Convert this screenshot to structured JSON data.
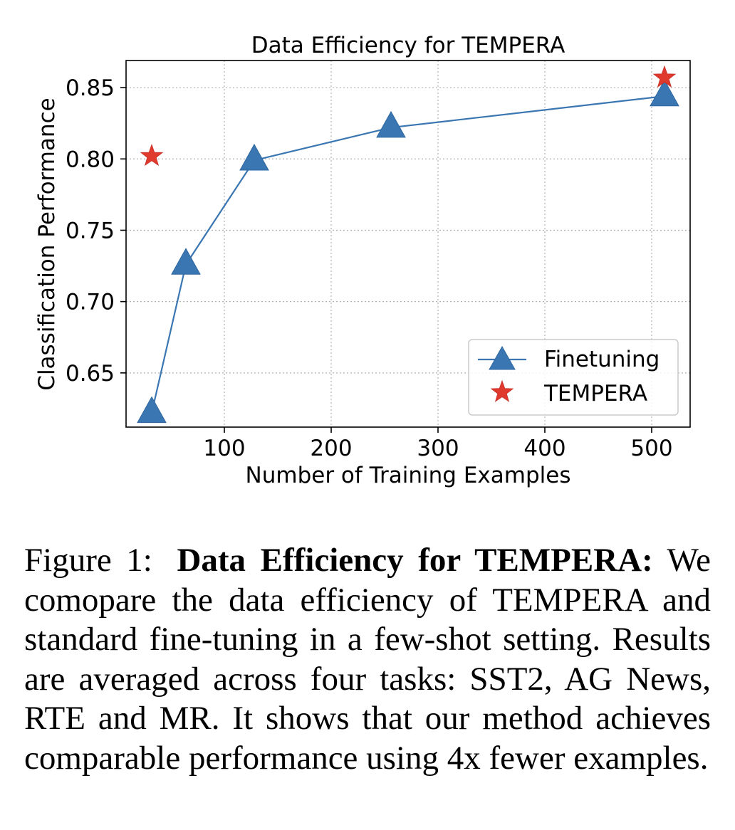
{
  "chart_data": {
    "type": "line",
    "title": "Data Efficiency for TEMPERA",
    "xlabel": "Number of Training Examples",
    "ylabel": "Classification Performance",
    "xlim": [
      8,
      536
    ],
    "ylim": [
      0.612,
      0.869
    ],
    "x_ticks": [
      100,
      200,
      300,
      400,
      500
    ],
    "y_ticks": [
      0.65,
      0.7,
      0.75,
      0.8,
      0.85
    ],
    "y_tick_labels": [
      "0.65",
      "0.70",
      "0.75",
      "0.80",
      "0.85"
    ],
    "x_tick_labels": [
      "100",
      "200",
      "300",
      "400",
      "500"
    ],
    "grid": true,
    "legend_position": "lower-right",
    "series": [
      {
        "name": "Finetuning",
        "marker": "triangle",
        "connected": true,
        "color": "#3a77b2",
        "x": [
          32,
          64,
          128,
          256,
          512
        ],
        "y": [
          0.622,
          0.726,
          0.799,
          0.822,
          0.844
        ]
      },
      {
        "name": "TEMPERA",
        "marker": "star",
        "connected": false,
        "color": "#e03a2e",
        "x": [
          32,
          512
        ],
        "y": [
          0.802,
          0.857
        ]
      }
    ]
  },
  "caption": {
    "label": "Figure 1:",
    "title": "Data Efficiency for TEMPERA:",
    "body": "We comopare the data efficiency of TEMPERA and standard fine-tuning in a few-shot setting. Results are averaged across four tasks: SST2, AG News, RTE and MR. It shows that our method achieves comparable performance using 4x fewer examples."
  }
}
